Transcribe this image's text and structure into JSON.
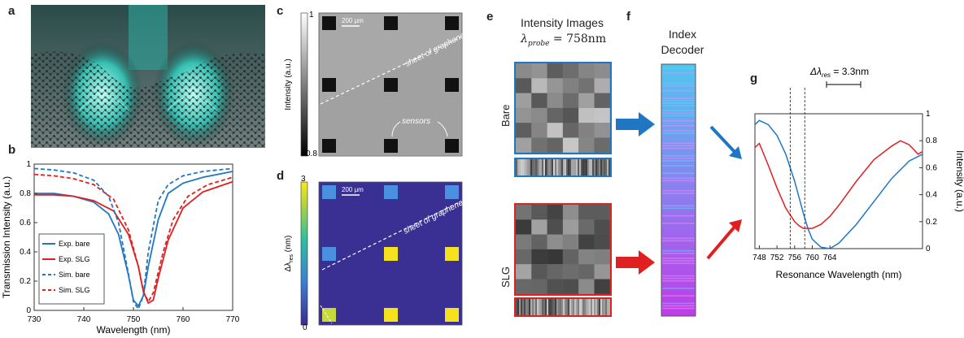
{
  "panel_labels": {
    "a": "a",
    "b": "b",
    "c": "c",
    "d": "d",
    "e": "e",
    "f": "f",
    "g": "g"
  },
  "panel_a": {
    "image": "graphene sheet draped over sensor illustration"
  },
  "panel_b": {
    "ylabel": "Transmission Intensity (a.u.)",
    "xlabel": "Wavelength (nm)",
    "xticks": [
      "730",
      "740",
      "750",
      "760",
      "770"
    ],
    "yticks": [
      "0",
      "0.2",
      "0.4",
      "0.6",
      "0.8",
      "1"
    ],
    "legend": [
      "Exp. bare",
      "Exp. SLG",
      "Sim. bare",
      "Sim. SLG"
    ]
  },
  "panel_c": {
    "colorbar_label": "Intensity (a.u.)",
    "colorbar_top": "1",
    "colorbar_bottom": "0.8",
    "scalebar": "200 μm",
    "annotation_graphene": "sheet of graphene",
    "annotation_sensors": "sensors"
  },
  "panel_d": {
    "colorbar_label": "Δλ",
    "colorbar_label_sub": "res",
    "colorbar_label_unit": " (nm)",
    "colorbar_top": "3",
    "colorbar_bottom": "0",
    "scalebar": "200 μm",
    "annotation_graphene": "sheet of graphene"
  },
  "panel_e": {
    "title_line1": "Intensity Images",
    "title_lambda": "λ",
    "title_sub": "probe",
    "title_value": " = 758nm",
    "label_bare": "Bare",
    "label_slg": "SLG"
  },
  "panel_f": {
    "title_line1": "Index",
    "title_line2": "Decoder"
  },
  "panel_g": {
    "annotation_delta": "Δλ",
    "annotation_sub": "res",
    "annotation_value": " = 3.3nm",
    "xlabel": "Resonance Wavelength (nm)",
    "ylabel": "Intensity (a.u.)",
    "xticks": [
      "748",
      "752",
      "756",
      "760",
      "764"
    ],
    "yticks": [
      "0",
      "0.2",
      "0.4",
      "0.6",
      "0.8",
      "1"
    ]
  },
  "colors": {
    "bare": "#1f77c4",
    "slg": "#e02020",
    "teal": "#3fd6c8",
    "decoder_top": "#4fc6f0",
    "decoder_bottom": "#c03ce8"
  },
  "chart_data": [
    {
      "type": "line",
      "title": "",
      "xlabel": "Wavelength (nm)",
      "ylabel": "Transmission Intensity (a.u.)",
      "xlim": [
        730,
        770
      ],
      "ylim": [
        0,
        1
      ],
      "series": [
        {
          "name": "Exp. bare",
          "style": "solid",
          "color": "#1f77c4",
          "x": [
            730,
            734,
            738,
            742,
            745,
            747,
            749,
            750,
            751,
            752,
            753,
            755,
            757,
            760,
            764,
            770
          ],
          "y": [
            0.8,
            0.8,
            0.78,
            0.74,
            0.66,
            0.52,
            0.24,
            0.07,
            0.03,
            0.1,
            0.3,
            0.62,
            0.8,
            0.87,
            0.91,
            0.95
          ]
        },
        {
          "name": "Exp. SLG",
          "style": "solid",
          "color": "#e02020",
          "x": [
            730,
            734,
            738,
            742,
            746,
            749,
            751,
            752,
            753,
            754,
            755,
            757,
            760,
            764,
            770
          ],
          "y": [
            0.79,
            0.79,
            0.78,
            0.75,
            0.68,
            0.52,
            0.3,
            0.13,
            0.05,
            0.07,
            0.22,
            0.48,
            0.7,
            0.81,
            0.88
          ]
        },
        {
          "name": "Sim. bare",
          "style": "dashed",
          "color": "#1f77c4",
          "x": [
            730,
            734,
            738,
            742,
            745,
            747,
            749,
            750,
            751,
            752,
            753,
            755,
            757,
            760,
            764,
            770
          ],
          "y": [
            0.97,
            0.96,
            0.94,
            0.89,
            0.78,
            0.6,
            0.25,
            0.06,
            0.01,
            0.1,
            0.4,
            0.75,
            0.86,
            0.92,
            0.95,
            0.97
          ]
        },
        {
          "name": "Sim. SLG",
          "style": "dashed",
          "color": "#e02020",
          "x": [
            730,
            734,
            738,
            742,
            746,
            749,
            751,
            752,
            753,
            754,
            756,
            758,
            761,
            765,
            770
          ],
          "y": [
            0.93,
            0.92,
            0.9,
            0.86,
            0.76,
            0.55,
            0.3,
            0.13,
            0.06,
            0.12,
            0.4,
            0.62,
            0.78,
            0.86,
            0.91
          ]
        }
      ]
    },
    {
      "type": "line",
      "title": "",
      "xlabel": "Resonance Wavelength (nm)",
      "ylabel": "Intensity (a.u.)",
      "xlim": [
        747,
        785
      ],
      "ylim": [
        0,
        1
      ],
      "series": [
        {
          "color": "#1f77c4",
          "x": [
            747,
            748,
            750,
            752,
            754,
            756,
            757,
            758,
            759,
            760,
            762,
            764,
            766,
            770,
            774,
            778,
            782,
            785
          ],
          "y": [
            0.92,
            0.95,
            0.92,
            0.84,
            0.7,
            0.5,
            0.38,
            0.26,
            0.15,
            0.07,
            0.01,
            0.0,
            0.04,
            0.18,
            0.35,
            0.52,
            0.65,
            0.7
          ]
        },
        {
          "color": "#e02020",
          "x": [
            747,
            748,
            750,
            752,
            754,
            756,
            757,
            758,
            760,
            762,
            764,
            766,
            770,
            774,
            778,
            780,
            782,
            784,
            785
          ],
          "y": [
            0.75,
            0.78,
            0.62,
            0.45,
            0.3,
            0.2,
            0.17,
            0.15,
            0.15,
            0.18,
            0.24,
            0.32,
            0.5,
            0.66,
            0.76,
            0.8,
            0.77,
            0.7,
            0.72
          ]
        }
      ],
      "markers": [
        {
          "x": 755,
          "style": "dashed"
        },
        {
          "x": 758.3,
          "style": "dashed"
        }
      ]
    }
  ]
}
